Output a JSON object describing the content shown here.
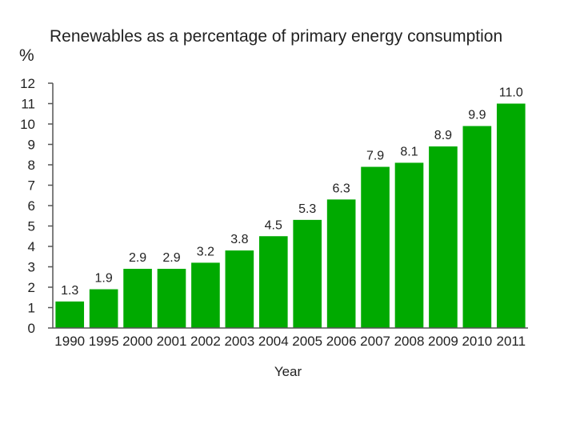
{
  "chart_data": {
    "type": "bar",
    "title": "Renewables as a percentage of primary energy consumption",
    "ylabel": "%",
    "xlabel": "Year",
    "categories": [
      "1990",
      "1995",
      "2000",
      "2001",
      "2002",
      "2003",
      "2004",
      "2005",
      "2006",
      "2007",
      "2008",
      "2009",
      "2010",
      "2011"
    ],
    "values": [
      1.3,
      1.9,
      2.9,
      2.9,
      3.2,
      3.8,
      4.5,
      5.3,
      6.3,
      7.9,
      8.1,
      8.9,
      9.9,
      11.0
    ],
    "value_labels": [
      "1.3",
      "1.9",
      "2.9",
      "2.9",
      "3.2",
      "3.8",
      "4.5",
      "5.3",
      "6.3",
      "7.9",
      "8.1",
      "8.9",
      "9.9",
      "11.0"
    ],
    "ylim": [
      0,
      12
    ],
    "yticks": [
      "0",
      "1",
      "2",
      "3",
      "4",
      "5",
      "6",
      "7",
      "8",
      "9",
      "10",
      "11",
      "12"
    ],
    "bar_color": "#00aa00",
    "axis_color": "#555555",
    "grid": false
  }
}
